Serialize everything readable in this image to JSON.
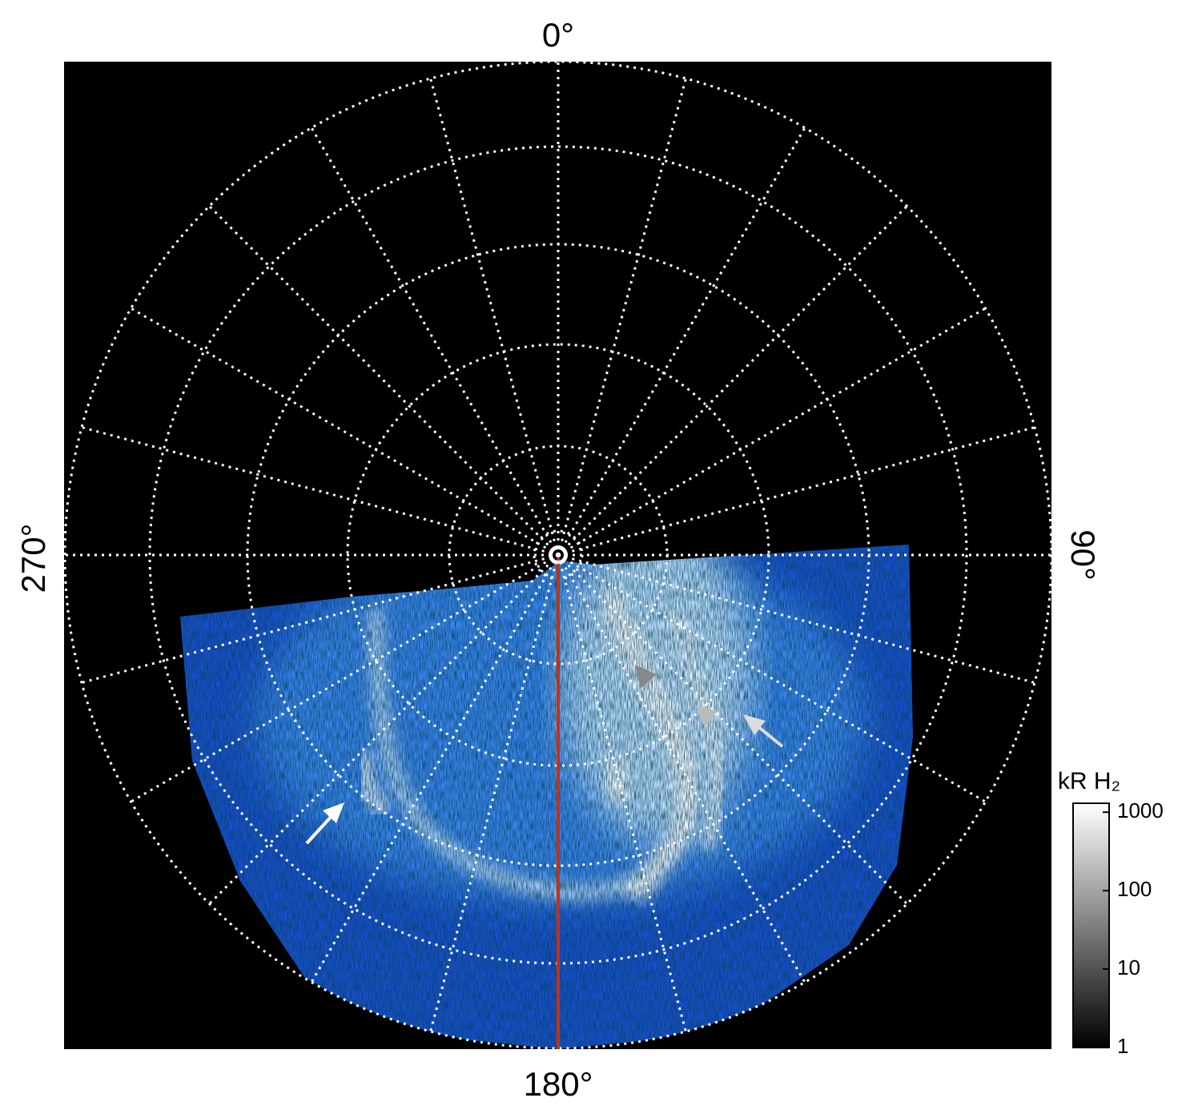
{
  "labels": {
    "top": "0°",
    "right": "90°",
    "bottom": "180°",
    "left": "270°"
  },
  "colorbar": {
    "label": "kR H₂",
    "scale": "log",
    "lim": [
      1,
      1300
    ],
    "ticks": [
      1,
      10,
      100,
      1000
    ]
  }
}
